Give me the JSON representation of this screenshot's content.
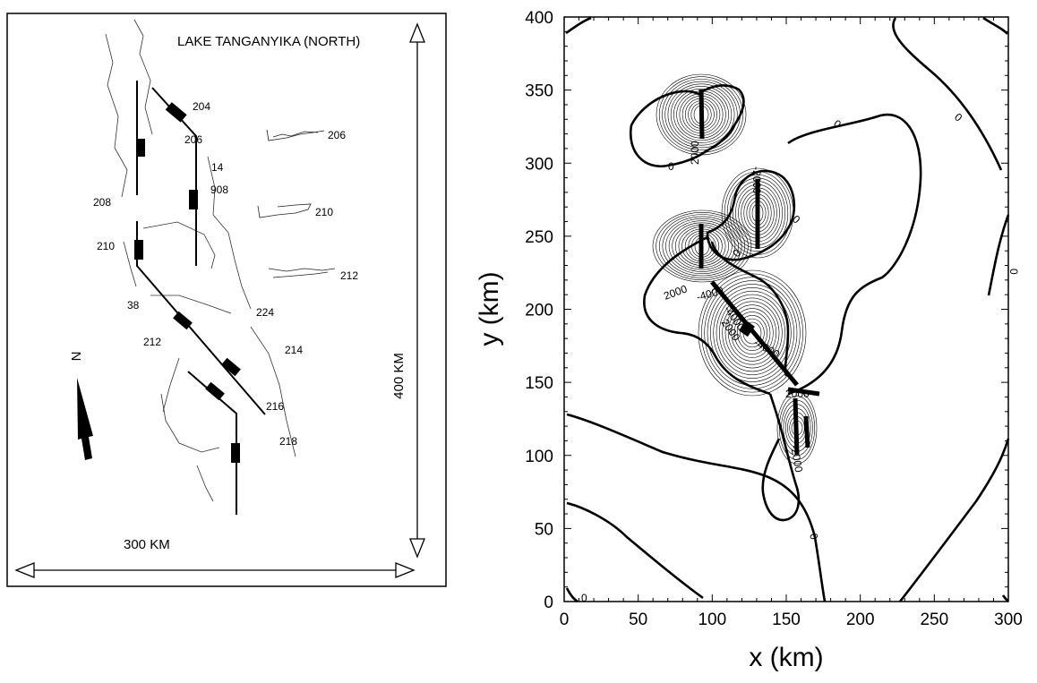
{
  "map_panel": {
    "title": "LAKE TANGANYIKA (NORTH)",
    "north_label": "N",
    "scale_horizontal": "300 KM",
    "scale_vertical": "400 KM",
    "fault_labels": [
      "204",
      "206",
      "14",
      "908",
      "208",
      "210",
      "38",
      "212",
      "224",
      "214",
      "216",
      "218"
    ],
    "profile_labels": [
      "206",
      "210",
      "212"
    ]
  },
  "contour_panel": {
    "xlabel": "x (km)",
    "ylabel": "y (km)",
    "x_ticks": [
      "0",
      "50",
      "100",
      "150",
      "200",
      "250",
      "300"
    ],
    "y_ticks": [
      "0",
      "50",
      "100",
      "150",
      "200",
      "250",
      "300",
      "350",
      "400"
    ],
    "contour_labels": [
      "0",
      "0",
      "0",
      "0",
      "0",
      "0",
      "0",
      "0",
      "2000",
      "2000",
      "-4000",
      "2000",
      "-4000",
      "-4000",
      "-2000",
      "2000",
      "-2000"
    ],
    "xlim": [
      0,
      300
    ],
    "ylim": [
      0,
      400
    ]
  }
}
